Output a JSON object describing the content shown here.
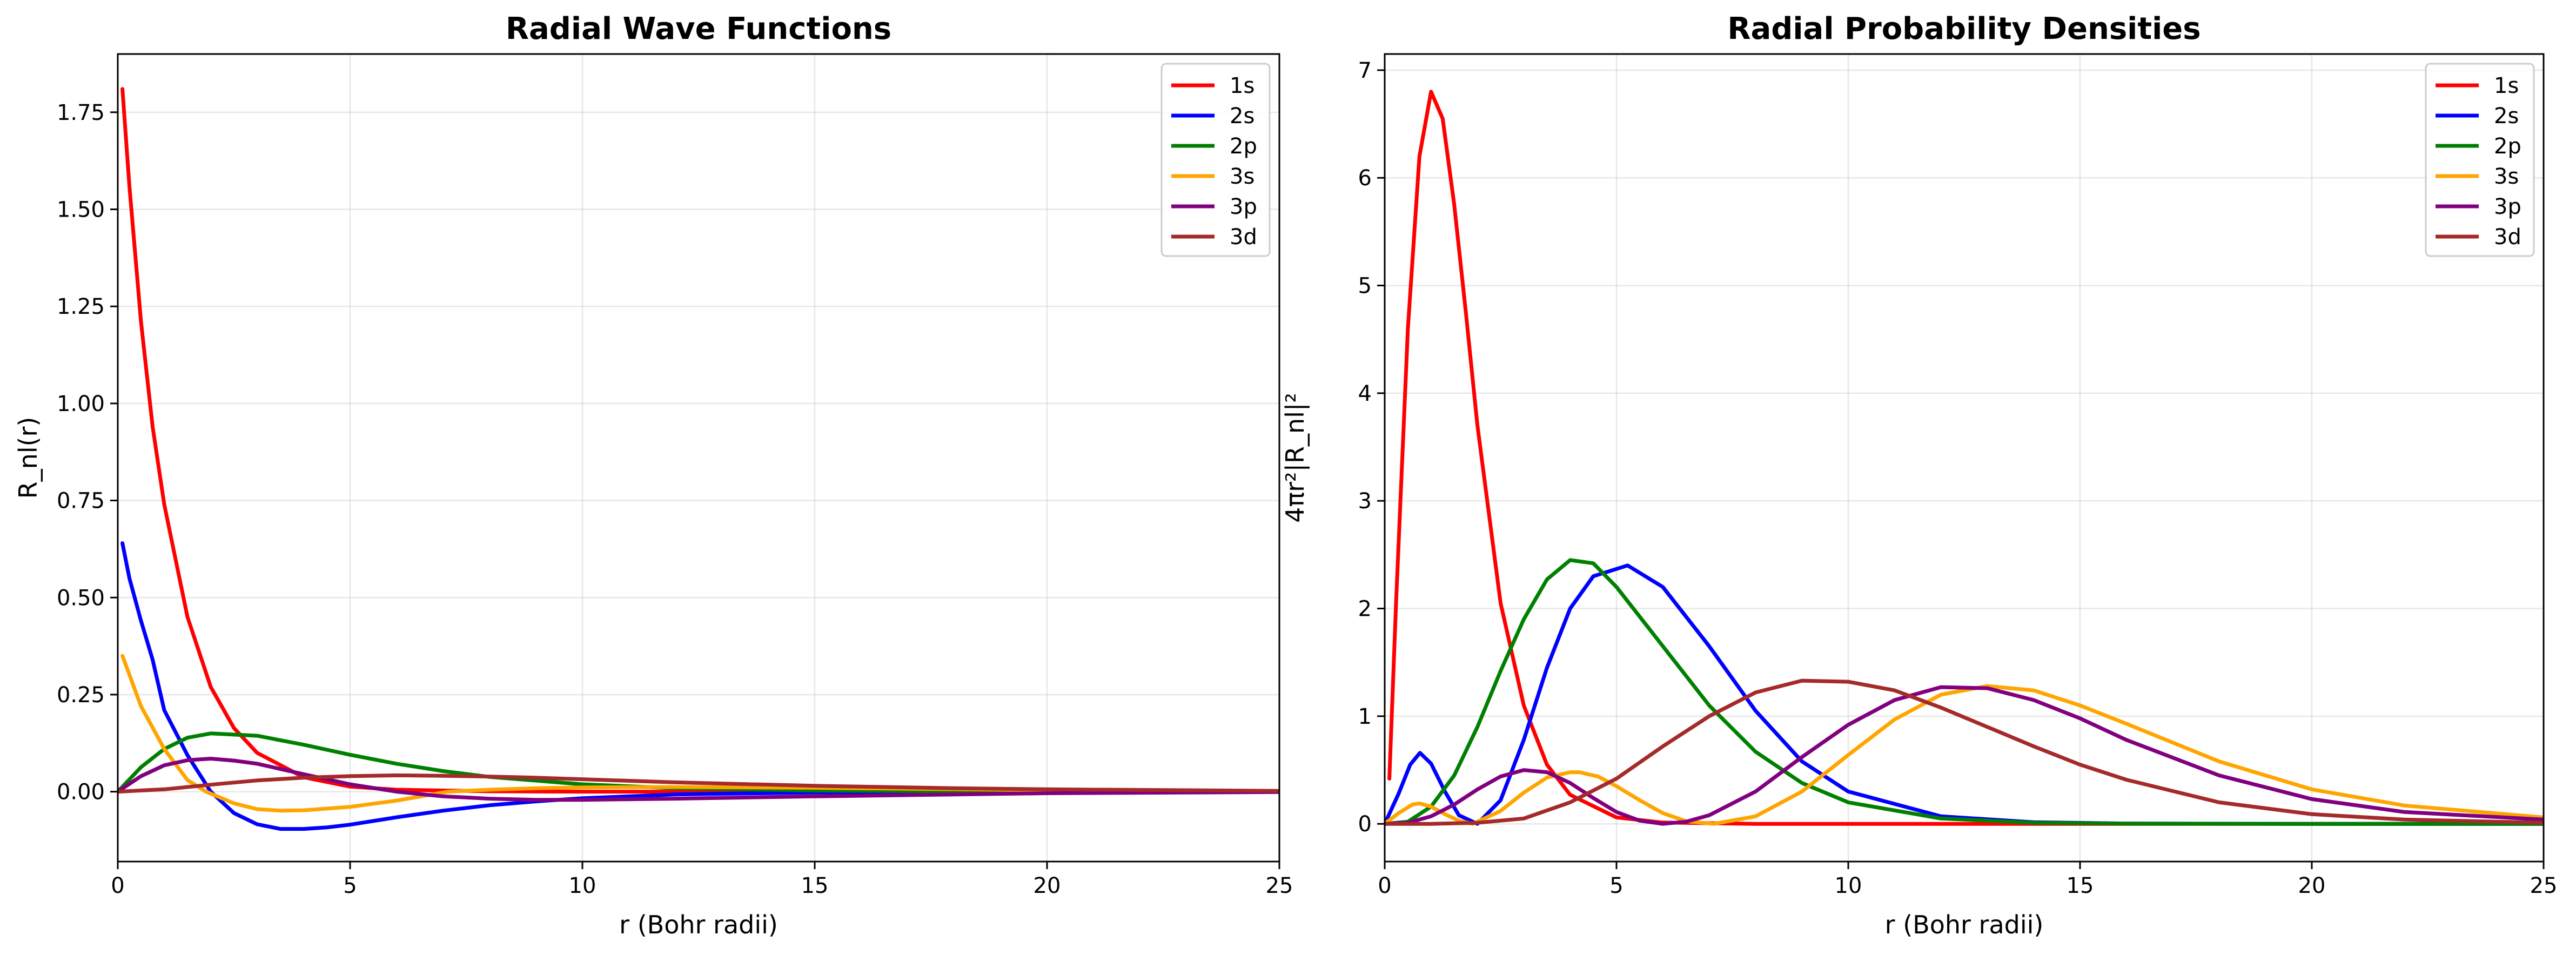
{
  "chart_data": [
    {
      "type": "line",
      "title": "Radial Wave Functions",
      "xlabel": "r (Bohr radii)",
      "ylabel": "R_nl(r)",
      "xlim": [
        0,
        25
      ],
      "ylim": [
        -0.18,
        1.9
      ],
      "xticks": [
        0,
        5,
        10,
        15,
        20,
        25
      ],
      "xtick_labels": [
        "0",
        "5",
        "10",
        "15",
        "20",
        "25"
      ],
      "yticks": [
        0.0,
        0.25,
        0.5,
        0.75,
        1.0,
        1.25,
        1.5,
        1.75
      ],
      "ytick_labels": [
        "0.00",
        "0.25",
        "0.50",
        "0.75",
        "1.00",
        "1.25",
        "1.50",
        "1.75"
      ],
      "grid": true,
      "legend": "top-right",
      "series": [
        {
          "name": "1s",
          "color": "#ff0000",
          "x": [
            0.1,
            0.25,
            0.5,
            0.75,
            1,
            1.5,
            2,
            2.5,
            3,
            4,
            5,
            6,
            8,
            10,
            15,
            20,
            25
          ],
          "y": [
            1.81,
            1.56,
            1.21,
            0.94,
            0.74,
            0.45,
            0.27,
            0.164,
            0.1,
            0.037,
            0.013,
            0.005,
            0.001,
            0.0,
            0.0,
            0.0,
            0.0
          ]
        },
        {
          "name": "2s",
          "color": "#0000ff",
          "x": [
            0.1,
            0.25,
            0.5,
            0.75,
            1,
            1.5,
            2,
            2.5,
            3,
            3.5,
            4,
            4.5,
            5,
            6,
            7,
            8,
            9,
            10,
            12,
            15,
            20,
            25
          ],
          "y": [
            0.64,
            0.55,
            0.44,
            0.34,
            0.21,
            0.094,
            0.0,
            -0.055,
            -0.084,
            -0.096,
            -0.096,
            -0.092,
            -0.085,
            -0.066,
            -0.049,
            -0.035,
            -0.025,
            -0.017,
            -0.007,
            -0.002,
            0.0,
            0.0
          ]
        },
        {
          "name": "2p",
          "color": "#008000",
          "x": [
            0,
            0.5,
            1,
            1.5,
            2,
            3,
            4,
            5,
            6,
            7,
            8,
            10,
            12,
            15,
            20,
            25
          ],
          "y": [
            0.0,
            0.063,
            0.11,
            0.139,
            0.15,
            0.144,
            0.121,
            0.095,
            0.072,
            0.053,
            0.038,
            0.019,
            0.009,
            0.003,
            0.0,
            0.0
          ]
        },
        {
          "name": "3s",
          "color": "#ffa500",
          "x": [
            0.1,
            0.5,
            1,
            1.5,
            1.9,
            2.5,
            3,
            3.5,
            4,
            5,
            6,
            7.1,
            8,
            9,
            10,
            12,
            15,
            20,
            25
          ],
          "y": [
            0.35,
            0.22,
            0.11,
            0.03,
            0.0,
            -0.03,
            -0.045,
            -0.049,
            -0.048,
            -0.039,
            -0.023,
            0.0,
            0.005,
            0.009,
            0.011,
            0.012,
            0.01,
            0.004,
            0.002
          ]
        },
        {
          "name": "3p",
          "color": "#800080",
          "x": [
            0,
            0.5,
            1,
            1.5,
            2,
            2.5,
            3,
            4,
            5,
            6,
            7,
            8,
            9,
            10,
            12,
            15,
            20,
            25
          ],
          "y": [
            0.0,
            0.04,
            0.068,
            0.081,
            0.085,
            0.08,
            0.072,
            0.045,
            0.019,
            0.0,
            -0.012,
            -0.018,
            -0.021,
            -0.021,
            -0.018,
            -0.012,
            -0.004,
            -0.001
          ]
        },
        {
          "name": "3d",
          "color": "#a52a2a",
          "x": [
            0,
            1,
            2,
            3,
            4,
            5,
            6,
            7,
            8,
            9,
            10,
            12,
            15,
            18,
            20,
            25
          ],
          "y": [
            0.0,
            0.006,
            0.018,
            0.029,
            0.036,
            0.04,
            0.042,
            0.041,
            0.039,
            0.036,
            0.032,
            0.024,
            0.015,
            0.009,
            0.006,
            0.002
          ]
        }
      ]
    },
    {
      "type": "line",
      "title": "Radial Probability Densities",
      "xlabel": "r (Bohr radii)",
      "ylabel": "4πr²|R_nl|²",
      "xlim": [
        0,
        25
      ],
      "ylim": [
        -0.35,
        7.15
      ],
      "xticks": [
        0,
        5,
        10,
        15,
        20,
        25
      ],
      "xtick_labels": [
        "0",
        "5",
        "10",
        "15",
        "20",
        "25"
      ],
      "yticks": [
        0,
        1,
        2,
        3,
        4,
        5,
        6,
        7
      ],
      "ytick_labels": [
        "0",
        "1",
        "2",
        "3",
        "4",
        "5",
        "6",
        "7"
      ],
      "grid": true,
      "legend": "top-right",
      "series": [
        {
          "name": "1s",
          "color": "#ff0000",
          "x": [
            0.1,
            0.25,
            0.5,
            0.75,
            1,
            1.25,
            1.5,
            1.75,
            2,
            2.5,
            3,
            3.5,
            4,
            5,
            6,
            8,
            10,
            25
          ],
          "y": [
            0.42,
            2.1,
            4.6,
            6.2,
            6.8,
            6.55,
            5.75,
            4.75,
            3.7,
            2.05,
            1.1,
            0.55,
            0.27,
            0.06,
            0.012,
            0.0,
            0.0,
            0.0
          ]
        },
        {
          "name": "2s",
          "color": "#0000ff",
          "x": [
            0,
            0.3,
            0.55,
            0.76,
            1,
            1.3,
            1.6,
            2,
            2.5,
            3,
            3.5,
            4,
            4.5,
            5.24,
            6,
            7,
            8,
            9,
            10,
            12,
            14,
            16,
            20,
            25
          ],
          "y": [
            0.0,
            0.28,
            0.55,
            0.66,
            0.56,
            0.3,
            0.08,
            0.0,
            0.22,
            0.78,
            1.45,
            2.0,
            2.3,
            2.4,
            2.2,
            1.65,
            1.05,
            0.58,
            0.3,
            0.07,
            0.015,
            0.003,
            0.0,
            0.0
          ]
        },
        {
          "name": "2p",
          "color": "#008000",
          "x": [
            0,
            0.5,
            1,
            1.5,
            2,
            2.5,
            3,
            3.5,
            4,
            4.5,
            5,
            6,
            7,
            8,
            9,
            10,
            12,
            14,
            16,
            20,
            25
          ],
          "y": [
            0.0,
            0.02,
            0.16,
            0.45,
            0.9,
            1.42,
            1.9,
            2.27,
            2.45,
            2.42,
            2.2,
            1.65,
            1.1,
            0.67,
            0.38,
            0.2,
            0.05,
            0.01,
            0.002,
            0.0,
            0.0
          ]
        },
        {
          "name": "3s",
          "color": "#ffa500",
          "x": [
            0,
            0.3,
            0.6,
            0.75,
            1,
            1.3,
            1.6,
            1.9,
            2.5,
            3,
            3.5,
            4,
            4.2,
            4.6,
            5,
            5.5,
            6,
            6.5,
            7.1,
            8,
            9,
            10,
            11,
            12,
            13,
            14,
            15,
            16,
            18,
            20,
            22,
            25
          ],
          "y": [
            0.0,
            0.1,
            0.18,
            0.19,
            0.16,
            0.09,
            0.03,
            0.0,
            0.12,
            0.29,
            0.43,
            0.48,
            0.48,
            0.44,
            0.35,
            0.22,
            0.1,
            0.025,
            0.0,
            0.07,
            0.3,
            0.64,
            0.97,
            1.2,
            1.28,
            1.24,
            1.1,
            0.93,
            0.58,
            0.32,
            0.17,
            0.06
          ]
        },
        {
          "name": "3p",
          "color": "#800080",
          "x": [
            0,
            0.5,
            1,
            1.5,
            2,
            2.5,
            3,
            3.5,
            4,
            4.5,
            5,
            5.5,
            6,
            6.5,
            7,
            8,
            9,
            10,
            11,
            12,
            13,
            14,
            15,
            16,
            18,
            20,
            22,
            25
          ],
          "y": [
            0.0,
            0.01,
            0.07,
            0.18,
            0.32,
            0.44,
            0.5,
            0.48,
            0.38,
            0.24,
            0.11,
            0.03,
            0.0,
            0.02,
            0.08,
            0.3,
            0.62,
            0.92,
            1.15,
            1.27,
            1.26,
            1.15,
            0.98,
            0.78,
            0.45,
            0.23,
            0.11,
            0.04
          ]
        },
        {
          "name": "3d",
          "color": "#a52a2a",
          "x": [
            0,
            1,
            2,
            3,
            4,
            5,
            6,
            7,
            8,
            9,
            10,
            11,
            12,
            13,
            14,
            15,
            16,
            18,
            20,
            22,
            25
          ],
          "y": [
            0.0,
            0.0,
            0.01,
            0.05,
            0.2,
            0.42,
            0.72,
            1.0,
            1.22,
            1.33,
            1.32,
            1.24,
            1.08,
            0.9,
            0.72,
            0.55,
            0.41,
            0.2,
            0.09,
            0.04,
            0.01
          ]
        }
      ]
    }
  ]
}
